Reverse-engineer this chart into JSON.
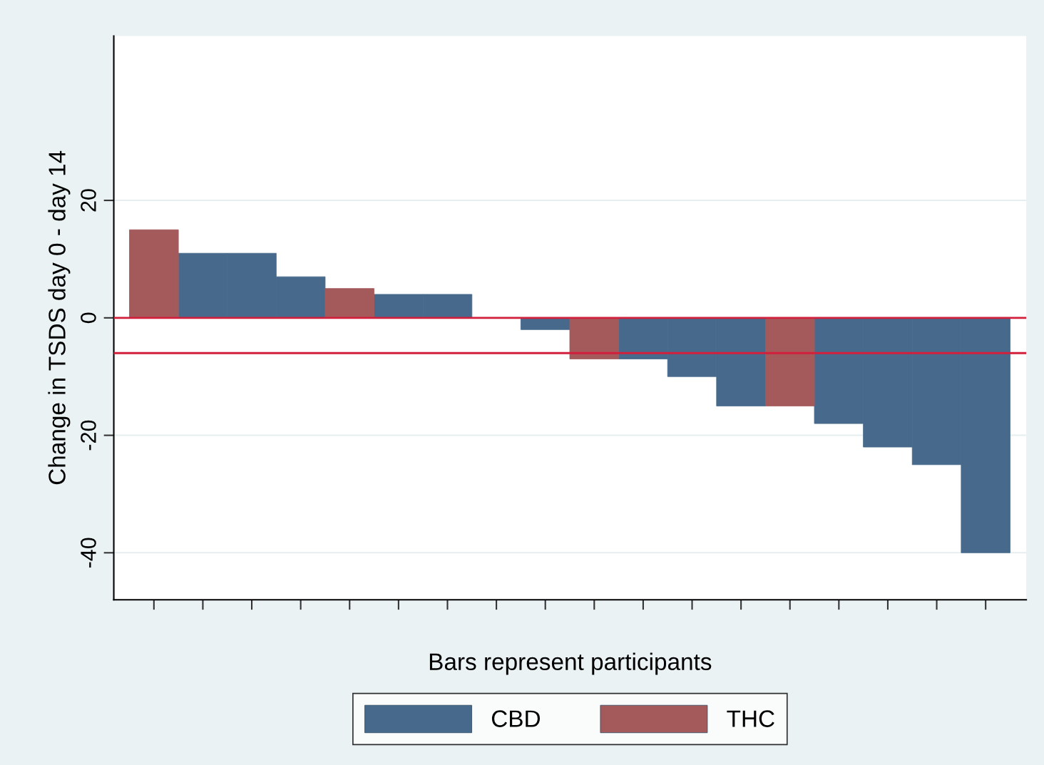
{
  "chart_data": {
    "type": "bar",
    "stacked": true,
    "xlabel": "Bars represent participants",
    "ylabel": "Change in TSDS day 0 - day 14",
    "categories": [
      null,
      null,
      null,
      null,
      null,
      null,
      null,
      null,
      null,
      null,
      null,
      null,
      null,
      null,
      null,
      null,
      null,
      null
    ],
    "series": [
      {
        "name": "CBD",
        "color": "#476a8c",
        "values": [
          null,
          11,
          11,
          7,
          null,
          4,
          4,
          0,
          -2,
          null,
          -7,
          -10,
          -15,
          null,
          -18,
          -22,
          -25,
          -40
        ]
      },
      {
        "name": "THC",
        "color": "#a45a5b",
        "values": [
          15,
          null,
          null,
          null,
          5,
          null,
          null,
          null,
          null,
          -7,
          null,
          null,
          null,
          -15,
          null,
          null,
          null,
          null
        ]
      }
    ],
    "ylim": [
      -48,
      48
    ],
    "yticks": [
      -40,
      -20,
      0,
      20
    ],
    "grid": "y",
    "legend": "bottom",
    "ref_lines": [
      {
        "axis": "y",
        "value": 0,
        "color": "#d21f3c"
      },
      {
        "axis": "y",
        "value": -6,
        "color": "#d21f3c"
      }
    ]
  }
}
